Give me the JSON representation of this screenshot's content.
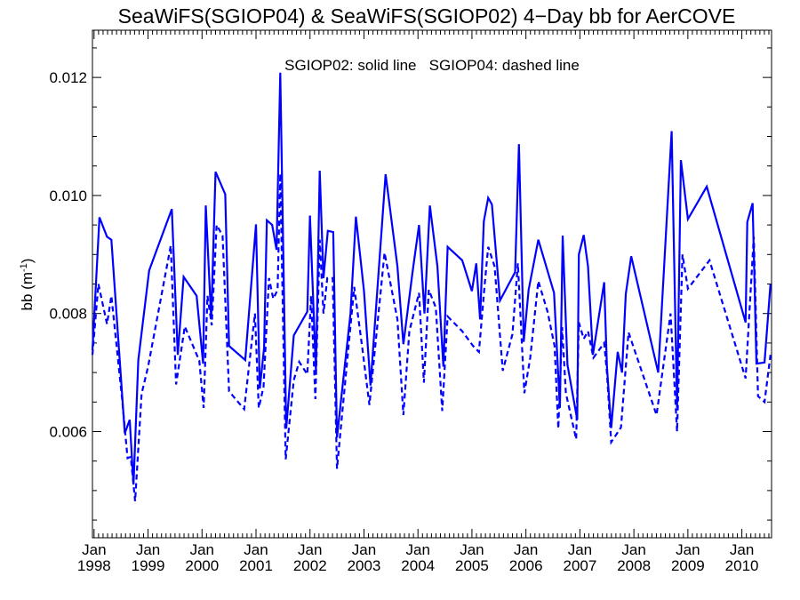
{
  "chart_data": {
    "type": "line",
    "title": "SeaWiFS(SGIOP04) & SeaWiFS(SGIOP02) 4−Day bb for AerCOVE",
    "annotation": "SGIOP02: solid line   SGIOP04: dashed line",
    "ylabel": "bb (m",
    "ylabel_sup": "-1",
    "ylabel_close": ")",
    "xlabel": "",
    "xlim": [
      1997.97,
      2010.55
    ],
    "ylim": [
      0.0042,
      0.0128
    ],
    "x_ticks": [
      {
        "year": 1998,
        "month": "Jan",
        "label": "1998"
      },
      {
        "year": 1999,
        "month": "Jan",
        "label": "1999"
      },
      {
        "year": 2000,
        "month": "Jan",
        "label": "2000"
      },
      {
        "year": 2001,
        "month": "Jan",
        "label": "2001"
      },
      {
        "year": 2002,
        "month": "Jan",
        "label": "2002"
      },
      {
        "year": 2003,
        "month": "Jan",
        "label": "2003"
      },
      {
        "year": 2004,
        "month": "Jan",
        "label": "2004"
      },
      {
        "year": 2005,
        "month": "Jan",
        "label": "2005"
      },
      {
        "year": 2006,
        "month": "Jan",
        "label": "2006"
      },
      {
        "year": 2007,
        "month": "Jan",
        "label": "2007"
      },
      {
        "year": 2008,
        "month": "Jan",
        "label": "2008"
      },
      {
        "year": 2009,
        "month": "Jan",
        "label": "2009"
      },
      {
        "year": 2010,
        "month": "Jan",
        "label": "2010"
      }
    ],
    "y_ticks": [
      {
        "value": 0.006,
        "label": "0.006"
      },
      {
        "value": 0.008,
        "label": "0.008"
      },
      {
        "value": 0.01,
        "label": "0.010"
      },
      {
        "value": 0.012,
        "label": "0.012"
      }
    ],
    "grid": false,
    "line_color": "#0000ff",
    "series": [
      {
        "name": "SGIOP02",
        "style": "solid",
        "points": [
          [
            1997.97,
            0.00738
          ],
          [
            1998.1,
            0.00963
          ],
          [
            1998.24,
            0.0093
          ],
          [
            1998.32,
            0.00925
          ],
          [
            1998.57,
            0.00597
          ],
          [
            1998.66,
            0.0062
          ],
          [
            1998.73,
            0.0051
          ],
          [
            1998.82,
            0.00721
          ],
          [
            1999.02,
            0.00873
          ],
          [
            1999.44,
            0.00977
          ],
          [
            1999.55,
            0.0073
          ],
          [
            1999.66,
            0.00862
          ],
          [
            1999.9,
            0.0083
          ],
          [
            2000.02,
            0.00715
          ],
          [
            2000.07,
            0.00983
          ],
          [
            2000.17,
            0.0079
          ],
          [
            2000.25,
            0.0104
          ],
          [
            2000.43,
            0.01002
          ],
          [
            2000.5,
            0.00745
          ],
          [
            2000.8,
            0.00721
          ],
          [
            2001.0,
            0.00951
          ],
          [
            2001.07,
            0.00673
          ],
          [
            2001.15,
            0.00742
          ],
          [
            2001.2,
            0.00958
          ],
          [
            2001.3,
            0.0095
          ],
          [
            2001.38,
            0.00908
          ],
          [
            2001.45,
            0.01208
          ],
          [
            2001.56,
            0.00605
          ],
          [
            2001.7,
            0.00763
          ],
          [
            2001.95,
            0.00803
          ],
          [
            2002.0,
            0.00966
          ],
          [
            2002.11,
            0.00703
          ],
          [
            2002.18,
            0.01042
          ],
          [
            2002.25,
            0.0086
          ],
          [
            2002.33,
            0.0094
          ],
          [
            2002.43,
            0.00938
          ],
          [
            2002.5,
            0.0059
          ],
          [
            2002.75,
            0.008
          ],
          [
            2002.85,
            0.00964
          ],
          [
            2003.0,
            0.00838
          ],
          [
            2003.12,
            0.00678
          ],
          [
            2003.4,
            0.01036
          ],
          [
            2003.62,
            0.0088
          ],
          [
            2003.73,
            0.00748
          ],
          [
            2003.9,
            0.0087
          ],
          [
            2004.02,
            0.0095
          ],
          [
            2004.12,
            0.008
          ],
          [
            2004.22,
            0.00983
          ],
          [
            2004.36,
            0.0088
          ],
          [
            2004.47,
            0.0071
          ],
          [
            2004.55,
            0.00913
          ],
          [
            2004.82,
            0.0089
          ],
          [
            2005.0,
            0.00838
          ],
          [
            2005.08,
            0.00885
          ],
          [
            2005.15,
            0.0079
          ],
          [
            2005.22,
            0.00956
          ],
          [
            2005.3,
            0.00996
          ],
          [
            2005.37,
            0.00985
          ],
          [
            2005.52,
            0.00822
          ],
          [
            2005.8,
            0.0087
          ],
          [
            2005.87,
            0.01087
          ],
          [
            2005.96,
            0.00752
          ],
          [
            2006.05,
            0.0084
          ],
          [
            2006.23,
            0.00925
          ],
          [
            2006.52,
            0.00835
          ],
          [
            2006.63,
            0.0064
          ],
          [
            2006.68,
            0.00932
          ],
          [
            2006.77,
            0.00713
          ],
          [
            2006.95,
            0.0062
          ],
          [
            2006.98,
            0.009
          ],
          [
            2007.07,
            0.00933
          ],
          [
            2007.15,
            0.0088
          ],
          [
            2007.24,
            0.0073
          ],
          [
            2007.45,
            0.00853
          ],
          [
            2007.5,
            0.0071
          ],
          [
            2007.58,
            0.00606
          ],
          [
            2007.7,
            0.00735
          ],
          [
            2007.78,
            0.007
          ],
          [
            2007.85,
            0.00833
          ],
          [
            2007.95,
            0.00897
          ],
          [
            2008.45,
            0.007
          ],
          [
            2008.7,
            0.01109
          ],
          [
            2008.8,
            0.0064
          ],
          [
            2008.87,
            0.0106
          ],
          [
            2009.0,
            0.0096
          ],
          [
            2009.35,
            0.01015
          ],
          [
            2010.07,
            0.00785
          ],
          [
            2010.1,
            0.00955
          ],
          [
            2010.2,
            0.00987
          ],
          [
            2010.27,
            0.00715
          ],
          [
            2010.42,
            0.00717
          ],
          [
            2010.53,
            0.0085
          ]
        ]
      },
      {
        "name": "SGIOP04",
        "style": "dashed",
        "points": [
          [
            1997.97,
            0.0073
          ],
          [
            1998.08,
            0.0085
          ],
          [
            1998.24,
            0.00782
          ],
          [
            1998.32,
            0.0083
          ],
          [
            1998.52,
            0.00655
          ],
          [
            1998.62,
            0.00555
          ],
          [
            1998.68,
            0.00557
          ],
          [
            1998.76,
            0.00482
          ],
          [
            1998.88,
            0.00664
          ],
          [
            1999.0,
            0.0071
          ],
          [
            1999.42,
            0.00915
          ],
          [
            1999.52,
            0.0068
          ],
          [
            1999.68,
            0.00778
          ],
          [
            1999.95,
            0.0072
          ],
          [
            2000.03,
            0.0064
          ],
          [
            2000.1,
            0.0083
          ],
          [
            2000.18,
            0.0078
          ],
          [
            2000.27,
            0.0095
          ],
          [
            2000.38,
            0.00932
          ],
          [
            2000.5,
            0.00668
          ],
          [
            2000.78,
            0.00638
          ],
          [
            2000.98,
            0.008
          ],
          [
            2001.05,
            0.0064
          ],
          [
            2001.14,
            0.00676
          ],
          [
            2001.24,
            0.0086
          ],
          [
            2001.32,
            0.00825
          ],
          [
            2001.4,
            0.0084
          ],
          [
            2001.45,
            0.01037
          ],
          [
            2001.55,
            0.00553
          ],
          [
            2001.7,
            0.00687
          ],
          [
            2001.8,
            0.00718
          ],
          [
            2001.95,
            0.00697
          ],
          [
            2002.02,
            0.0083
          ],
          [
            2002.1,
            0.00655
          ],
          [
            2002.18,
            0.00925
          ],
          [
            2002.25,
            0.008
          ],
          [
            2002.32,
            0.0086
          ],
          [
            2002.42,
            0.0086
          ],
          [
            2002.5,
            0.00537
          ],
          [
            2002.72,
            0.0075
          ],
          [
            2002.82,
            0.00845
          ],
          [
            2002.97,
            0.0074
          ],
          [
            2003.1,
            0.00645
          ],
          [
            2003.38,
            0.00903
          ],
          [
            2003.62,
            0.0079
          ],
          [
            2003.73,
            0.00628
          ],
          [
            2003.84,
            0.0077
          ],
          [
            2004.02,
            0.00835
          ],
          [
            2004.11,
            0.00683
          ],
          [
            2004.2,
            0.0084
          ],
          [
            2004.33,
            0.0081
          ],
          [
            2004.45,
            0.00635
          ],
          [
            2004.55,
            0.00795
          ],
          [
            2004.82,
            0.0077
          ],
          [
            2005.02,
            0.00745
          ],
          [
            2005.13,
            0.00735
          ],
          [
            2005.24,
            0.00853
          ],
          [
            2005.3,
            0.00913
          ],
          [
            2005.42,
            0.0088
          ],
          [
            2005.57,
            0.00703
          ],
          [
            2005.75,
            0.00765
          ],
          [
            2005.85,
            0.00885
          ],
          [
            2005.97,
            0.00665
          ],
          [
            2006.08,
            0.00725
          ],
          [
            2006.23,
            0.00855
          ],
          [
            2006.4,
            0.00803
          ],
          [
            2006.53,
            0.00745
          ],
          [
            2006.6,
            0.00605
          ],
          [
            2006.67,
            0.00777
          ],
          [
            2006.74,
            0.00665
          ],
          [
            2006.93,
            0.00587
          ],
          [
            2006.98,
            0.00785
          ],
          [
            2007.07,
            0.00757
          ],
          [
            2007.15,
            0.0077
          ],
          [
            2007.25,
            0.00725
          ],
          [
            2007.45,
            0.0075
          ],
          [
            2007.5,
            0.007
          ],
          [
            2007.58,
            0.00582
          ],
          [
            2007.66,
            0.00593
          ],
          [
            2007.76,
            0.00607
          ],
          [
            2007.9,
            0.00768
          ],
          [
            2008.42,
            0.00628
          ],
          [
            2008.68,
            0.008
          ],
          [
            2008.8,
            0.006
          ],
          [
            2008.9,
            0.009
          ],
          [
            2009.0,
            0.00842
          ],
          [
            2009.4,
            0.0089
          ],
          [
            2010.07,
            0.0069
          ],
          [
            2010.22,
            0.0093
          ],
          [
            2010.3,
            0.0066
          ],
          [
            2010.42,
            0.0065
          ],
          [
            2010.53,
            0.0073
          ]
        ]
      }
    ]
  }
}
